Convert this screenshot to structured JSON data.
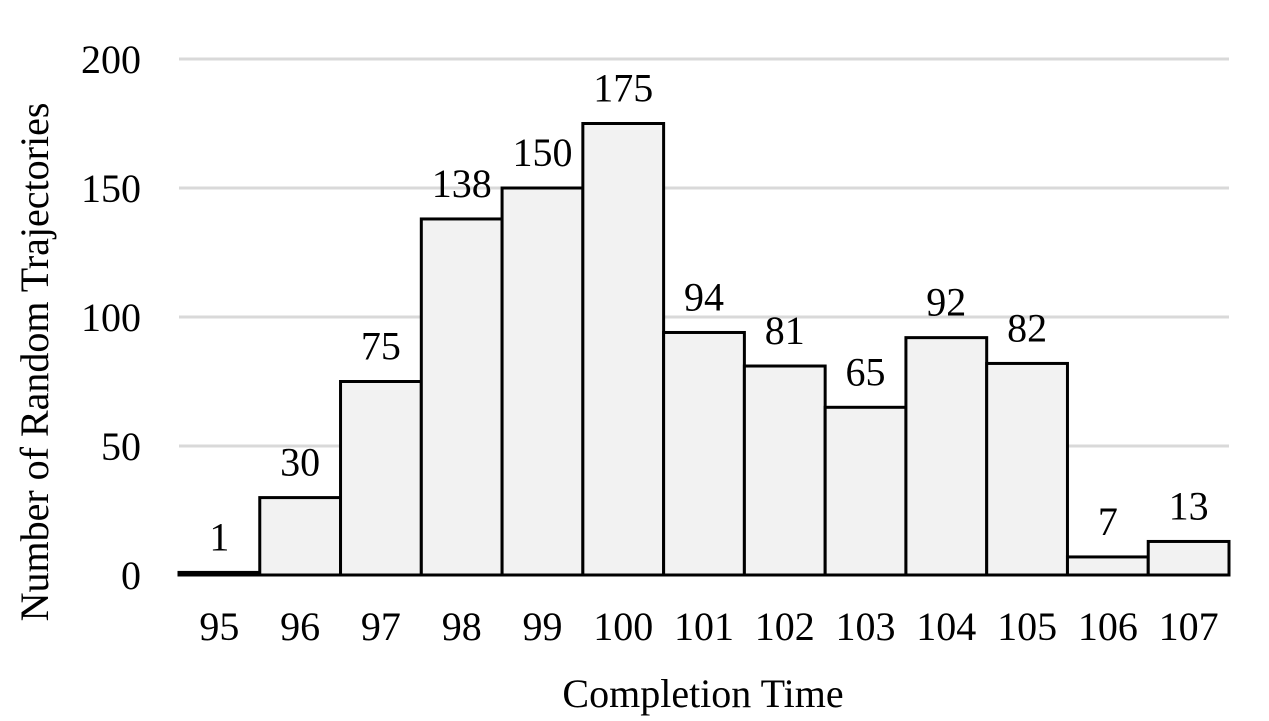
{
  "colors": {
    "bar_fill": "#f2f2f2",
    "bar_stroke": "#000000",
    "grid": "#d9d9d9",
    "text": "#000000"
  },
  "chart_data": {
    "type": "bar",
    "title": "",
    "xlabel": "Completion Time",
    "ylabel": "Number of Random Trajectories",
    "categories": [
      "95",
      "96",
      "97",
      "98",
      "99",
      "100",
      "101",
      "102",
      "103",
      "104",
      "105",
      "106",
      "107"
    ],
    "values": [
      1,
      30,
      75,
      138,
      150,
      175,
      94,
      81,
      65,
      92,
      82,
      7,
      13
    ],
    "ylim": [
      0,
      200
    ],
    "yticks": [
      0,
      50,
      100,
      150,
      200
    ],
    "grid": true,
    "legend": "none",
    "data_labels": true
  }
}
